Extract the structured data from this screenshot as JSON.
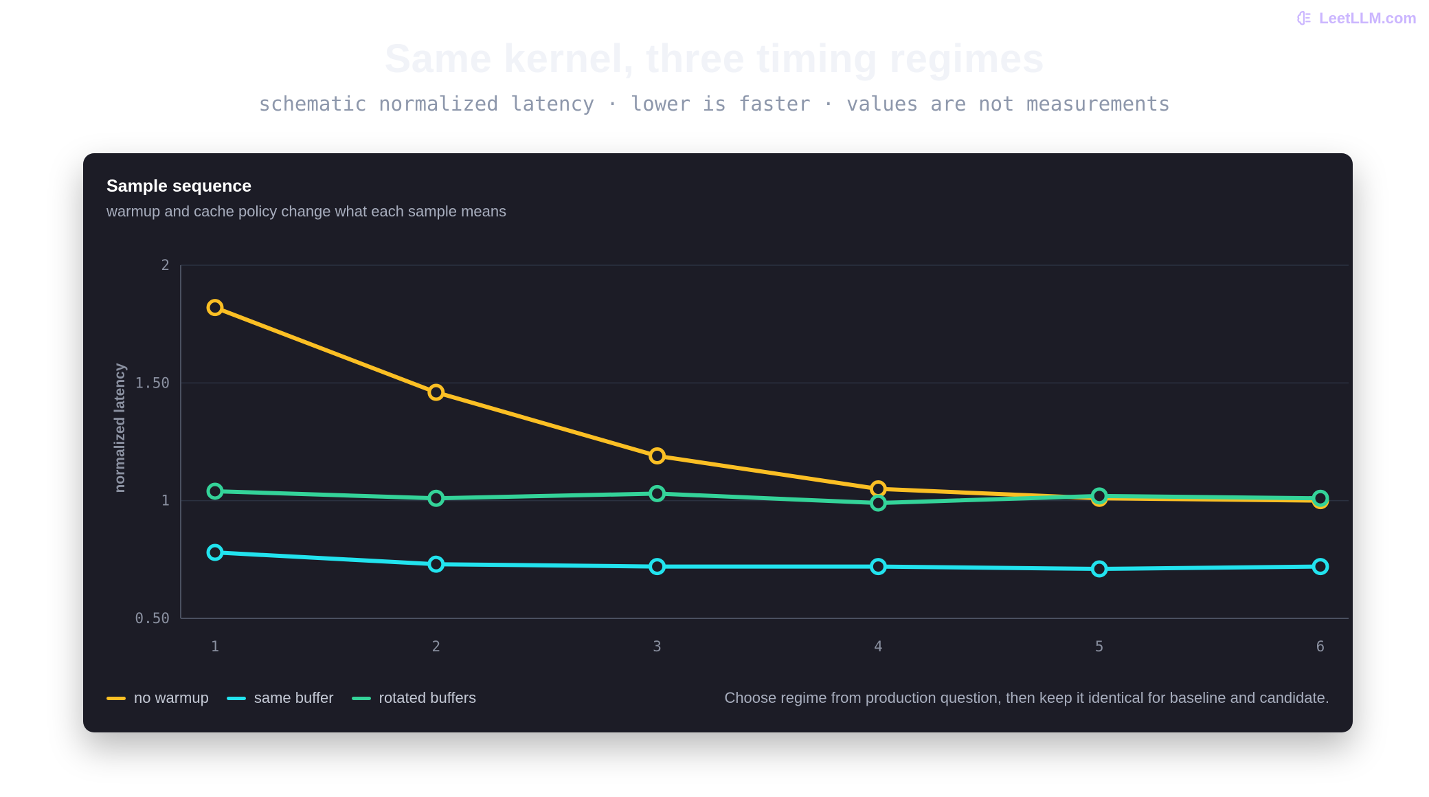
{
  "brand": {
    "text": "LeetLLM.com",
    "icon": "brain-icon",
    "color": "#cbb6ff"
  },
  "header": {
    "title": "Same kernel, three timing regimes",
    "subtitle": "schematic normalized latency · lower is faster · values are not measurements"
  },
  "card": {
    "title": "Sample sequence",
    "subtitle": "warmup and cache policy change what each sample means",
    "note": "Choose regime from production question, then keep it identical for baseline and candidate."
  },
  "chart_data": {
    "type": "line",
    "title": "Sample sequence",
    "subtitle": "warmup and cache policy change what each sample means",
    "xlabel": "",
    "ylabel": "normalized latency",
    "x": [
      1,
      2,
      3,
      4,
      5,
      6
    ],
    "x_tick_labels": [
      "1",
      "2",
      "3",
      "4",
      "5",
      "6"
    ],
    "ylim": [
      0.5,
      2
    ],
    "y_ticks": [
      0.5,
      1,
      1.5,
      2
    ],
    "y_tick_labels": [
      "0.50",
      "1",
      "1.50",
      "2"
    ],
    "grid": true,
    "legend_position": "bottom-left",
    "series": [
      {
        "name": "no warmup",
        "color": "#fbbf24",
        "values": [
          1.82,
          1.46,
          1.19,
          1.05,
          1.01,
          1.0
        ]
      },
      {
        "name": "same buffer",
        "color": "#22e3ee",
        "values": [
          0.78,
          0.73,
          0.72,
          0.72,
          0.71,
          0.72
        ]
      },
      {
        "name": "rotated buffers",
        "color": "#34d399",
        "values": [
          1.04,
          1.01,
          1.03,
          0.99,
          1.02,
          1.01
        ]
      }
    ]
  }
}
